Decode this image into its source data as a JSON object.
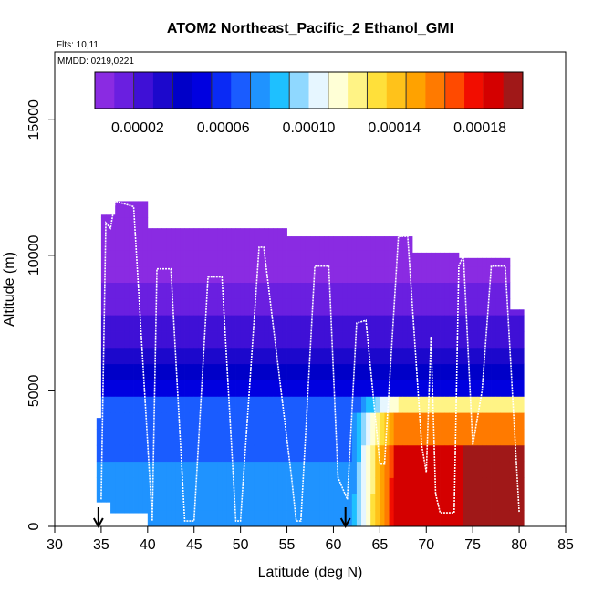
{
  "chart_data": {
    "type": "heatmap",
    "title": "ATOM2 Northeast_Pacific_2 Ethanol_GMI",
    "flights_text": "Flts: 10,11",
    "mmdd_text": "MMDD: 0219,0221",
    "xlabel": "Latitude (deg N)",
    "ylabel": "Altitude (m)",
    "xlim": [
      30,
      85
    ],
    "ylim": [
      0,
      17500
    ],
    "x_ticks": [
      30,
      35,
      40,
      45,
      50,
      55,
      60,
      65,
      70,
      75,
      80,
      85
    ],
    "y_ticks": [
      0,
      5000,
      10000,
      15000
    ],
    "colorbar": {
      "range": [
        0,
        0.0002
      ],
      "tick_values": [
        2e-05,
        6e-05,
        0.0001,
        0.00014,
        0.00018
      ],
      "tick_labels": [
        "0.00002",
        "0.00006",
        "0.00010",
        "0.00014",
        "0.00018"
      ],
      "colors": [
        "#8a2be2",
        "#6a1fe0",
        "#3f10d6",
        "#1c08cc",
        "#0000c8",
        "#0000e0",
        "#0a2af5",
        "#1a5cff",
        "#1f93ff",
        "#1ec0ff",
        "#8fd8ff",
        "#e6f6ff",
        "#ffffd6",
        "#fff385",
        "#ffe03a",
        "#ffc21a",
        "#ffa200",
        "#ff7a00",
        "#ff4a00",
        "#f20d00",
        "#d40000",
        "#a01818"
      ]
    },
    "lat_range": [
      34.5,
      80.5
    ],
    "alt_bins_m": [
      600,
      1200,
      1800,
      2400,
      3000,
      3600,
      4200,
      4800,
      5400,
      6000,
      6600,
      7200,
      7800,
      8400,
      9000,
      9600,
      10200,
      10800,
      11400,
      12000
    ],
    "flight_track": [
      [
        35,
        1000
      ],
      [
        35.5,
        11200
      ],
      [
        36,
        11000
      ],
      [
        36.5,
        12000
      ],
      [
        38.5,
        11800
      ],
      [
        40.5,
        200
      ],
      [
        41,
        9500
      ],
      [
        42.5,
        9500
      ],
      [
        44,
        200
      ],
      [
        45,
        200
      ],
      [
        46.5,
        9200
      ],
      [
        48,
        9200
      ],
      [
        49.5,
        200
      ],
      [
        50,
        200
      ],
      [
        52,
        10300
      ],
      [
        52.5,
        10300
      ],
      [
        55.5,
        1800
      ],
      [
        56,
        200
      ],
      [
        56.5,
        200
      ],
      [
        58,
        9600
      ],
      [
        59.5,
        9600
      ],
      [
        60.5,
        1800
      ],
      [
        61.5,
        1000
      ],
      [
        62.5,
        7500
      ],
      [
        63.5,
        7600
      ],
      [
        65,
        2300
      ],
      [
        65.5,
        2300
      ],
      [
        67,
        10700
      ],
      [
        68,
        10700
      ],
      [
        69.5,
        3000
      ],
      [
        70,
        2000
      ],
      [
        70.5,
        7000
      ],
      [
        71,
        1200
      ],
      [
        71.5,
        500
      ],
      [
        73,
        500
      ],
      [
        73.5,
        9600
      ],
      [
        74,
        10000
      ],
      [
        75,
        3000
      ],
      [
        76,
        5000
      ],
      [
        77,
        9600
      ],
      [
        78.5,
        9600
      ],
      [
        80,
        500
      ]
    ],
    "markers_lat": [
      34.7,
      61.3
    ]
  }
}
